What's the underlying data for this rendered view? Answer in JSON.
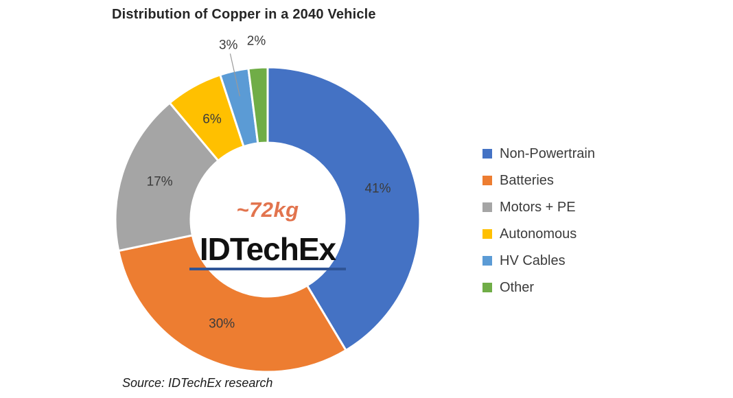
{
  "title": "Distribution of Copper in a 2040 Vehicle",
  "source": {
    "text": "Source: IDTechEx research"
  },
  "watermark": {
    "text": "IDTechEx",
    "underline_color": "#2F5496"
  },
  "chart_data": {
    "type": "pie",
    "subtype": "donut",
    "title": "Distribution of Copper in a 2040 Vehicle",
    "center_text": "~72kg",
    "center_text_color": "#E2744E",
    "unit": "%",
    "categories": [
      "Non-Powertrain",
      "Batteries",
      "Motors + PE",
      "Autonomous",
      "HV Cables",
      "Other"
    ],
    "values": [
      41,
      30,
      17,
      6,
      3,
      2
    ],
    "labels": [
      "41%",
      "30%",
      "17%",
      "6%",
      "3%",
      "2%"
    ],
    "colors": [
      "#4472C4",
      "#ED7D31",
      "#A5A5A5",
      "#FFC000",
      "#5B9BD5",
      "#70AD47"
    ],
    "label_placement": [
      "inside",
      "inside",
      "inside",
      "inside",
      "outside-leader",
      "outside"
    ],
    "legend_position": "right",
    "start_angle_deg": -90,
    "direction": "clockwise"
  },
  "legend": {
    "items": [
      {
        "label": "Non-Powertrain",
        "color": "#4472C4"
      },
      {
        "label": "Batteries",
        "color": "#ED7D31"
      },
      {
        "label": "Motors + PE",
        "color": "#A5A5A5"
      },
      {
        "label": "Autonomous",
        "color": "#FFC000"
      },
      {
        "label": "HV Cables",
        "color": "#5B9BD5"
      },
      {
        "label": "Other",
        "color": "#70AD47"
      }
    ]
  }
}
